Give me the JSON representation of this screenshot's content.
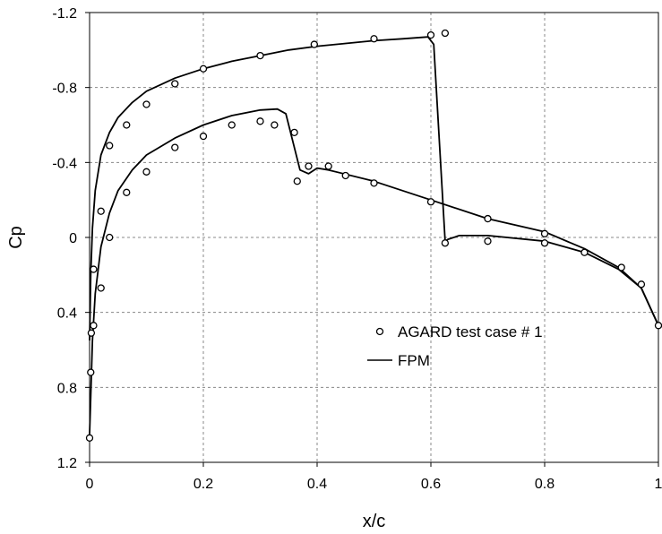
{
  "chart_data": {
    "type": "line",
    "xlabel": "x/c",
    "ylabel": "Cp",
    "xlim": [
      0,
      1
    ],
    "ylim": [
      1.2,
      -1.2
    ],
    "y_inverted": true,
    "grid": true,
    "legend_position": "center-right",
    "x_ticks": [
      "0",
      "0.2",
      "0.4",
      "0.6",
      "0.8",
      "1"
    ],
    "x_tick_values": [
      0,
      0.2,
      0.4,
      0.6,
      0.8,
      1
    ],
    "y_ticks": [
      "-1.2",
      "-0.8",
      "-0.4",
      "0",
      "0.4",
      "0.8",
      "1.2"
    ],
    "y_tick_values": [
      -1.2,
      -0.8,
      -0.4,
      0,
      0.4,
      0.8,
      1.2
    ],
    "series": [
      {
        "name": "AGARD test case # 1",
        "style": "markers",
        "marker": "open-circle",
        "color": "#000000",
        "points": [
          [
            0.0,
            1.07
          ],
          [
            0.002,
            0.72
          ],
          [
            0.003,
            0.51
          ],
          [
            0.007,
            0.47
          ],
          [
            0.007,
            0.17
          ],
          [
            0.02,
            0.27
          ],
          [
            0.02,
            -0.14
          ],
          [
            0.035,
            0.0
          ],
          [
            0.035,
            -0.49
          ],
          [
            0.065,
            -0.24
          ],
          [
            0.065,
            -0.6
          ],
          [
            0.1,
            -0.35
          ],
          [
            0.1,
            -0.71
          ],
          [
            0.15,
            -0.48
          ],
          [
            0.15,
            -0.82
          ],
          [
            0.2,
            -0.54
          ],
          [
            0.2,
            -0.9
          ],
          [
            0.25,
            -0.6
          ],
          [
            0.3,
            -0.62
          ],
          [
            0.3,
            -0.97
          ],
          [
            0.325,
            -0.6
          ],
          [
            0.36,
            -0.56
          ],
          [
            0.365,
            -0.3
          ],
          [
            0.385,
            -0.38
          ],
          [
            0.395,
            -1.03
          ],
          [
            0.42,
            -0.38
          ],
          [
            0.45,
            -0.33
          ],
          [
            0.5,
            -0.29
          ],
          [
            0.5,
            -1.06
          ],
          [
            0.6,
            -0.19
          ],
          [
            0.6,
            -1.08
          ],
          [
            0.625,
            -1.09
          ],
          [
            0.625,
            0.03
          ],
          [
            0.7,
            -0.1
          ],
          [
            0.7,
            0.02
          ],
          [
            0.8,
            -0.02
          ],
          [
            0.8,
            0.03
          ],
          [
            0.87,
            0.08
          ],
          [
            0.935,
            0.16
          ],
          [
            0.97,
            0.25
          ],
          [
            1.0,
            0.47
          ]
        ]
      },
      {
        "name": "FPM",
        "style": "line",
        "color": "#000000",
        "upper_surface": [
          [
            0.0,
            0.55
          ],
          [
            0.002,
            0.2
          ],
          [
            0.005,
            -0.05
          ],
          [
            0.01,
            -0.25
          ],
          [
            0.02,
            -0.44
          ],
          [
            0.035,
            -0.56
          ],
          [
            0.05,
            -0.64
          ],
          [
            0.075,
            -0.72
          ],
          [
            0.1,
            -0.78
          ],
          [
            0.15,
            -0.85
          ],
          [
            0.2,
            -0.9
          ],
          [
            0.25,
            -0.94
          ],
          [
            0.3,
            -0.97
          ],
          [
            0.35,
            -1.0
          ],
          [
            0.4,
            -1.02
          ],
          [
            0.45,
            -1.035
          ],
          [
            0.5,
            -1.05
          ],
          [
            0.55,
            -1.06
          ],
          [
            0.595,
            -1.07
          ],
          [
            0.605,
            -1.03
          ],
          [
            0.625,
            0.02
          ],
          [
            0.63,
            0.01
          ],
          [
            0.65,
            -0.01
          ],
          [
            0.7,
            -0.01
          ],
          [
            0.8,
            0.02
          ],
          [
            0.87,
            0.08
          ],
          [
            0.93,
            0.17
          ],
          [
            0.97,
            0.27
          ],
          [
            1.0,
            0.47
          ]
        ],
        "lower_surface": [
          [
            0.0,
            1.05
          ],
          [
            0.002,
            0.85
          ],
          [
            0.005,
            0.55
          ],
          [
            0.01,
            0.3
          ],
          [
            0.02,
            0.05
          ],
          [
            0.035,
            -0.13
          ],
          [
            0.05,
            -0.25
          ],
          [
            0.075,
            -0.36
          ],
          [
            0.1,
            -0.44
          ],
          [
            0.15,
            -0.53
          ],
          [
            0.2,
            -0.6
          ],
          [
            0.25,
            -0.65
          ],
          [
            0.3,
            -0.68
          ],
          [
            0.33,
            -0.685
          ],
          [
            0.345,
            -0.66
          ],
          [
            0.37,
            -0.36
          ],
          [
            0.385,
            -0.34
          ],
          [
            0.4,
            -0.37
          ],
          [
            0.42,
            -0.36
          ],
          [
            0.5,
            -0.3
          ],
          [
            0.6,
            -0.2
          ],
          [
            0.7,
            -0.1
          ],
          [
            0.8,
            -0.03
          ],
          [
            0.87,
            0.06
          ],
          [
            0.93,
            0.16
          ],
          [
            0.97,
            0.27
          ],
          [
            1.0,
            0.47
          ]
        ]
      }
    ]
  }
}
